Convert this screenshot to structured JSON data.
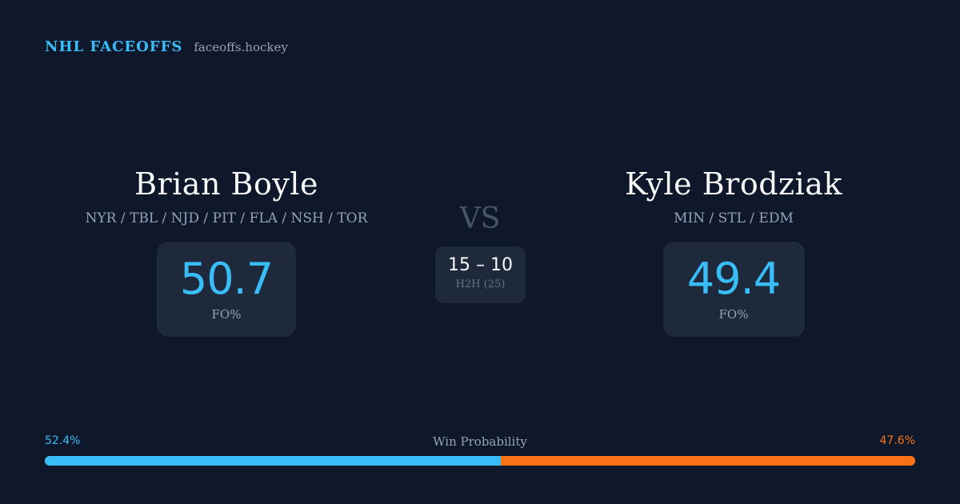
{
  "brand": {
    "name": "NHL FACEOFFS",
    "site": "faceoffs.hockey"
  },
  "player_left": {
    "name": "Brian Boyle",
    "teams": "NYR / TBL / NJD / PIT / FLA / NSH / TOR",
    "fo_pct": "50.7",
    "fo_label": "FO%"
  },
  "player_right": {
    "name": "Kyle Brodziak",
    "teams": "MIN / STL / EDM",
    "fo_pct": "49.4",
    "fo_label": "FO%"
  },
  "versus": {
    "label": "VS",
    "h2h_score": "15 – 10",
    "h2h_label": "H2H (25)"
  },
  "win_probability": {
    "title": "Win Probability",
    "left_pct_text": "52.4%",
    "right_pct_text": "47.6%",
    "left_fraction": 0.524
  },
  "colors": {
    "background": "#0f172a",
    "card": "#1e293b",
    "accent_blue": "#38bdf8",
    "accent_orange": "#f97316",
    "muted": "#94a3b8"
  }
}
